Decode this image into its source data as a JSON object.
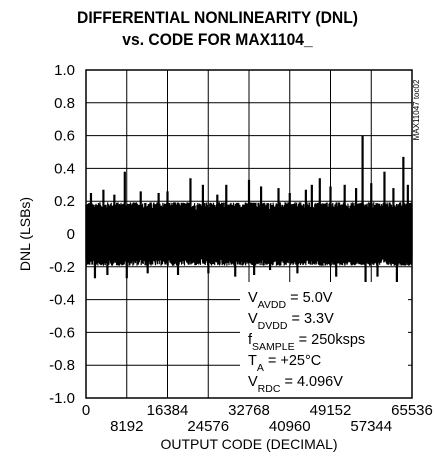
{
  "chart_data": {
    "type": "line",
    "title": "DIFFERENTIAL NONLINEARITY (DNL)",
    "subtitle": "vs. CODE FOR MAX1104_",
    "xlabel": "OUTPUT CODE (DECIMAL)",
    "ylabel": "DNL (LSBs)",
    "xlim": [
      0,
      65536
    ],
    "ylim": [
      -1.0,
      1.0
    ],
    "x_ticks_top_row": [
      "0",
      "16384",
      "32768",
      "49152",
      "65536"
    ],
    "x_ticks_bottom_row": [
      "8192",
      "24576",
      "40960",
      "57344"
    ],
    "y_ticks": [
      "1.0",
      "0.8",
      "0.6",
      "0.4",
      "0.2",
      "0",
      "-0.2",
      "-0.4",
      "-0.6",
      "-0.8",
      "-1.0"
    ],
    "grid": true,
    "noise_band": [
      -0.2,
      0.2
    ],
    "spikes": [
      {
        "x": 1000,
        "y": 0.25
      },
      {
        "x": 1800,
        "y": -0.27
      },
      {
        "x": 3500,
        "y": 0.27
      },
      {
        "x": 4300,
        "y": -0.25
      },
      {
        "x": 5700,
        "y": 0.24
      },
      {
        "x": 7800,
        "y": 0.38
      },
      {
        "x": 8200,
        "y": -0.27
      },
      {
        "x": 11000,
        "y": 0.26
      },
      {
        "x": 12400,
        "y": -0.24
      },
      {
        "x": 14600,
        "y": 0.25
      },
      {
        "x": 16384,
        "y": 0.26
      },
      {
        "x": 18500,
        "y": -0.25
      },
      {
        "x": 21000,
        "y": 0.34
      },
      {
        "x": 23500,
        "y": 0.3
      },
      {
        "x": 24600,
        "y": -0.24
      },
      {
        "x": 26400,
        "y": 0.24
      },
      {
        "x": 28200,
        "y": 0.3
      },
      {
        "x": 30000,
        "y": -0.26
      },
      {
        "x": 32768,
        "y": 0.33
      },
      {
        "x": 33800,
        "y": -0.25
      },
      {
        "x": 35200,
        "y": 0.29
      },
      {
        "x": 37000,
        "y": -0.22
      },
      {
        "x": 38700,
        "y": 0.28
      },
      {
        "x": 40960,
        "y": 0.25
      },
      {
        "x": 42500,
        "y": -0.24
      },
      {
        "x": 44200,
        "y": 0.27
      },
      {
        "x": 45400,
        "y": 0.3
      },
      {
        "x": 47000,
        "y": 0.34
      },
      {
        "x": 49152,
        "y": 0.29
      },
      {
        "x": 50300,
        "y": -0.26
      },
      {
        "x": 52000,
        "y": 0.3
      },
      {
        "x": 54300,
        "y": 0.28
      },
      {
        "x": 55600,
        "y": 0.6
      },
      {
        "x": 56200,
        "y": -0.38
      },
      {
        "x": 57344,
        "y": 0.31
      },
      {
        "x": 58600,
        "y": -0.26
      },
      {
        "x": 60000,
        "y": 0.38
      },
      {
        "x": 61800,
        "y": 0.28
      },
      {
        "x": 62500,
        "y": -0.33
      },
      {
        "x": 63800,
        "y": 0.47
      },
      {
        "x": 64700,
        "y": 0.3
      }
    ],
    "conditions": [
      {
        "main": "V",
        "sub": "AVDD",
        "rest": " = 5.0V"
      },
      {
        "main": "V",
        "sub": "DVDD",
        "rest": " = 3.3V"
      },
      {
        "main": "f",
        "sub": "SAMPLE",
        "rest": " = 250ksps"
      },
      {
        "main": "T",
        "sub": "A",
        "rest": " = +25°C"
      },
      {
        "main": "V",
        "sub": "RDC",
        "rest": " = 4.096V"
      }
    ],
    "side_label": "MAX11047 toc02",
    "colors": {
      "trace": "#000000",
      "grid": "#000000",
      "background": "#ffffff"
    }
  }
}
